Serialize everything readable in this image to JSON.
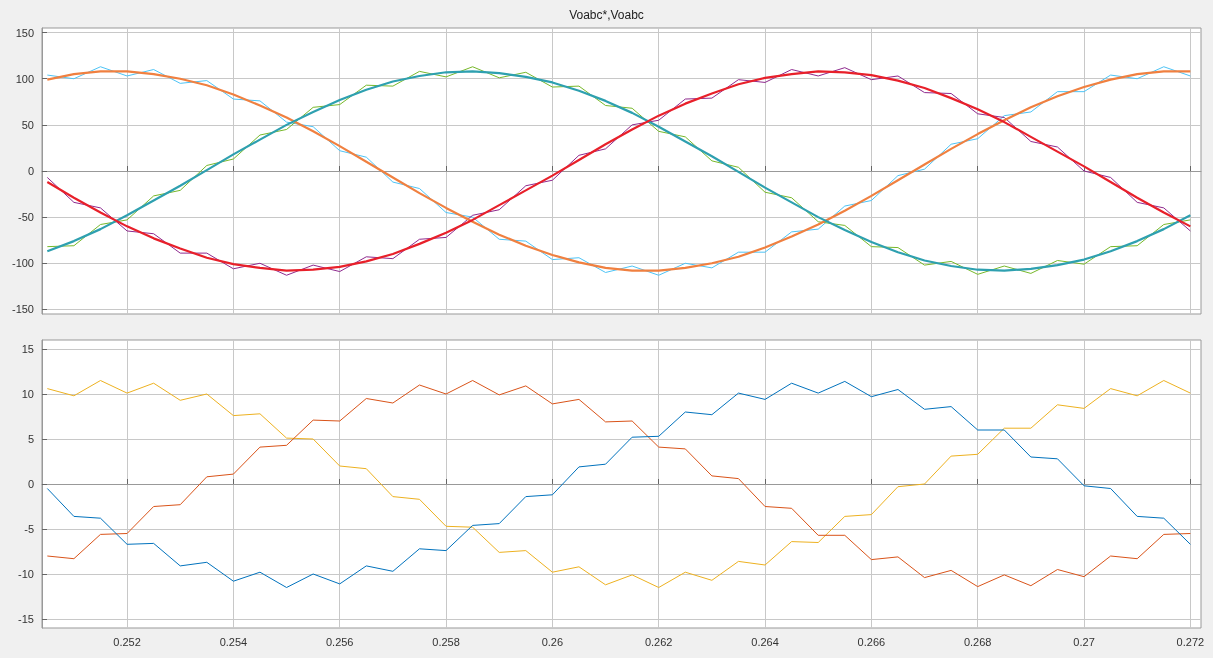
{
  "chart_data": [
    {
      "type": "line",
      "title": "Voabc*,Voabc",
      "tick_labels": "y",
      "grid": true,
      "marker": "none",
      "line_style": "solid",
      "x": [
        0.2505,
        0.251,
        0.2515,
        0.252,
        0.2525,
        0.253,
        0.2535,
        0.254,
        0.2545,
        0.255,
        0.2555,
        0.256,
        0.2565,
        0.257,
        0.2575,
        0.258,
        0.2585,
        0.259,
        0.2595,
        0.26,
        0.2605,
        0.261,
        0.2615,
        0.262,
        0.2625,
        0.263,
        0.2635,
        0.264,
        0.2645,
        0.265,
        0.2655,
        0.266,
        0.2665,
        0.267,
        0.2675,
        0.268,
        0.2685,
        0.269,
        0.2695,
        0.27,
        0.2705,
        0.271,
        0.2715,
        0.272
      ],
      "xlim": [
        0.2504,
        0.2722
      ],
      "xticks": [
        0.252,
        0.254,
        0.256,
        0.258,
        0.26,
        0.262,
        0.264,
        0.266,
        0.268,
        0.27,
        0.272
      ],
      "ylim": [
        -155,
        155
      ],
      "yticks": [
        -150,
        -100,
        -50,
        0,
        50,
        100,
        150
      ],
      "series": [
        {
          "color": "#4dc3f5",
          "values": [
            104,
            100,
            113,
            103,
            110,
            95,
            98,
            78,
            76,
            53,
            48,
            22,
            15,
            -12,
            -19,
            -45,
            -50,
            -74,
            -76,
            -96,
            -94,
            -110,
            -103,
            -113,
            -100,
            -105,
            -88,
            -88,
            -66,
            -63,
            -38,
            -32,
            -5,
            2,
            29,
            35,
            60,
            64,
            86,
            86,
            104,
            100,
            113,
            103
          ]
        },
        {
          "color": "#77b82a",
          "values": [
            -82,
            -81,
            -58,
            -53,
            -27,
            -21,
            6,
            13,
            39,
            45,
            69,
            72,
            93,
            92,
            108,
            102,
            113,
            101,
            107,
            91,
            92,
            71,
            68,
            43,
            37,
            11,
            4,
            -23,
            -29,
            -55,
            -59,
            -82,
            -83,
            -102,
            -98,
            -112,
            -103,
            -111,
            -97,
            -101,
            -82,
            -81,
            -58,
            -53
          ]
        },
        {
          "color": "#8e2a8e",
          "values": [
            -7,
            -34,
            -40,
            -65,
            -68,
            -89,
            -89,
            -106,
            -100,
            -113,
            -102,
            -109,
            -93,
            -95,
            -74,
            -72,
            -48,
            -42,
            -16,
            -10,
            17,
            24,
            50,
            55,
            78,
            79,
            99,
            96,
            110,
            103,
            112,
            99,
            103,
            85,
            84,
            62,
            58,
            32,
            26,
            0,
            -7,
            -34,
            -40,
            -65
          ]
        },
        {
          "color": "#f08040",
          "values": [
            99,
            105,
            108,
            108,
            105,
            100,
            93,
            83,
            71,
            58,
            43,
            27,
            10,
            -7,
            -24,
            -40,
            -55,
            -69,
            -81,
            -91,
            -99,
            -105,
            -108,
            -108,
            -105,
            -100,
            -93,
            -83,
            -71,
            -58,
            -43,
            -27,
            -10,
            7,
            24,
            40,
            55,
            69,
            81,
            91,
            99,
            105,
            108,
            108
          ]
        },
        {
          "color": "#2ea0b0",
          "values": [
            -87,
            -76,
            -63,
            -48,
            -32,
            -16,
            1,
            18,
            34,
            50,
            64,
            77,
            88,
            97,
            103,
            107,
            108,
            106,
            102,
            96,
            87,
            76,
            63,
            48,
            32,
            16,
            -1,
            -18,
            -34,
            -50,
            -64,
            -77,
            -88,
            -97,
            -103,
            -107,
            -108,
            -106,
            -102,
            -96,
            -87,
            -76,
            -63,
            -48
          ]
        },
        {
          "color": "#e8202a",
          "values": [
            -12,
            -29,
            -45,
            -60,
            -73,
            -84,
            -94,
            -101,
            -105,
            -108,
            -107,
            -104,
            -98,
            -90,
            -79,
            -67,
            -53,
            -37,
            -21,
            -5,
            12,
            29,
            45,
            60,
            73,
            84,
            94,
            101,
            105,
            108,
            107,
            104,
            98,
            90,
            79,
            67,
            53,
            37,
            21,
            5,
            -12,
            -29,
            -45,
            -60
          ]
        }
      ]
    },
    {
      "type": "line",
      "grid": true,
      "marker": "none",
      "line_style": "solid",
      "x": [
        0.2505,
        0.251,
        0.2515,
        0.252,
        0.2525,
        0.253,
        0.2535,
        0.254,
        0.2545,
        0.255,
        0.2555,
        0.256,
        0.2565,
        0.257,
        0.2575,
        0.258,
        0.2585,
        0.259,
        0.2595,
        0.26,
        0.2605,
        0.261,
        0.2615,
        0.262,
        0.2625,
        0.263,
        0.2635,
        0.264,
        0.2645,
        0.265,
        0.2655,
        0.266,
        0.2665,
        0.267,
        0.2675,
        0.268,
        0.2685,
        0.269,
        0.2695,
        0.27,
        0.2705,
        0.271,
        0.2715,
        0.272
      ],
      "xlim": [
        0.2504,
        0.2722
      ],
      "xticks": [
        0.252,
        0.254,
        0.256,
        0.258,
        0.26,
        0.262,
        0.264,
        0.266,
        0.268,
        0.27,
        0.272
      ],
      "ylim": [
        -16,
        16
      ],
      "yticks": [
        -15,
        -10,
        -5,
        0,
        5,
        10,
        15
      ],
      "series": [
        {
          "color": "#edb120",
          "values": [
            10.6,
            9.8,
            11.5,
            10.1,
            11.2,
            9.3,
            10.0,
            7.6,
            7.8,
            5.1,
            5.0,
            2.0,
            1.7,
            -1.4,
            -1.7,
            -4.7,
            -4.8,
            -7.6,
            -7.4,
            -9.8,
            -9.2,
            -11.2,
            -10.1,
            -11.5,
            -9.8,
            -10.7,
            -8.6,
            -9.0,
            -6.4,
            -6.5,
            -3.6,
            -3.4,
            -0.3,
            0,
            3.1,
            3.3,
            6.2,
            6.2,
            8.8,
            8.4,
            10.6,
            9.8,
            11.5,
            10.1
          ]
        },
        {
          "color": "#d95319",
          "values": [
            -8.0,
            -8.3,
            -5.6,
            -5.5,
            -2.5,
            -2.3,
            0.8,
            1.1,
            4.1,
            4.3,
            7.1,
            7.0,
            9.5,
            9.0,
            11.0,
            10.0,
            11.5,
            9.9,
            10.9,
            8.9,
            9.4,
            6.9,
            7.0,
            4.1,
            3.9,
            0.9,
            0.6,
            -2.5,
            -2.7,
            -5.7,
            -5.7,
            -8.4,
            -8.1,
            -10.4,
            -9.6,
            -11.4,
            -10.1,
            -11.3,
            -9.5,
            -10.3,
            -8.0,
            -8.3,
            -5.6,
            -5.5
          ]
        },
        {
          "color": "#0072bd",
          "values": [
            -0.5,
            -3.6,
            -3.8,
            -6.7,
            -6.6,
            -9.1,
            -8.7,
            -10.8,
            -9.8,
            -11.5,
            -10.0,
            -11.1,
            -9.1,
            -9.7,
            -7.2,
            -7.4,
            -4.6,
            -4.4,
            -1.4,
            -1.2,
            1.9,
            2.2,
            5.2,
            5.3,
            8.0,
            7.7,
            10.1,
            9.4,
            11.2,
            10.1,
            11.4,
            9.7,
            10.5,
            8.3,
            8.6,
            6.0,
            6.0,
            3.0,
            2.8,
            -0.2,
            -0.5,
            -3.6,
            -3.8,
            -6.7
          ]
        }
      ]
    }
  ]
}
